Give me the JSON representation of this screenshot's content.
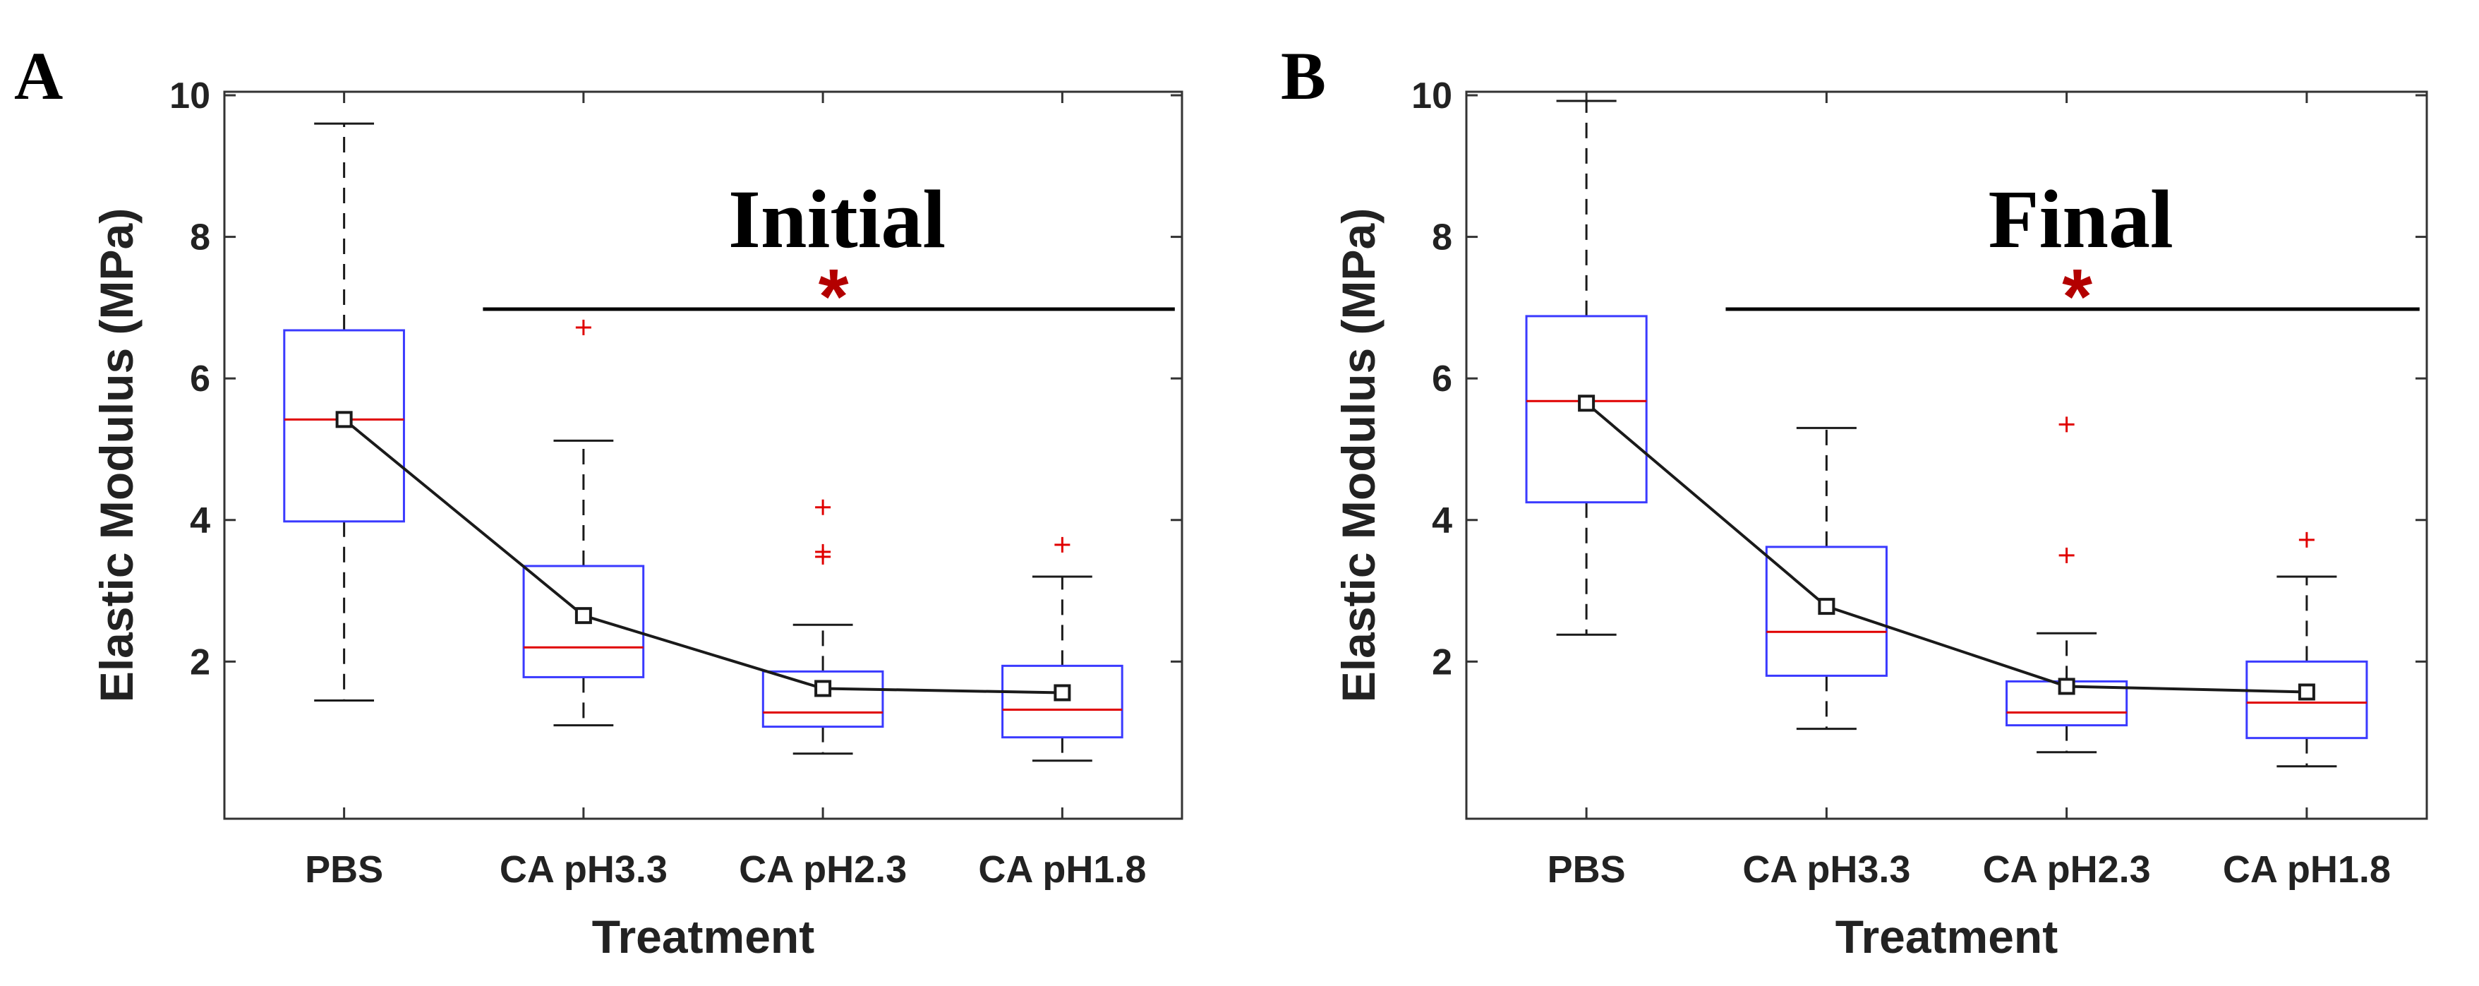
{
  "chart_data": [
    {
      "type": "box",
      "panel": "A",
      "title": "Initial",
      "xlabel": "Treatment",
      "ylabel": "Elastic Modulus (MPa)",
      "ylim": [
        0,
        10
      ],
      "yticks": [
        "2",
        "4",
        "6",
        "8",
        "10"
      ],
      "categories": [
        "PBS",
        "CA pH3.3",
        "CA pH2.3",
        "CA pH1.8"
      ],
      "significance_marker": "*",
      "significance_span": [
        "CA pH3.3",
        "CA pH1.8"
      ],
      "boxes": [
        {
          "whisker_low": 1.45,
          "q1": 3.98,
          "median": 5.42,
          "q3": 6.68,
          "whisker_high": 9.6,
          "outliers": []
        },
        {
          "whisker_low": 1.1,
          "q1": 1.78,
          "median": 2.2,
          "q3": 3.35,
          "whisker_high": 5.12,
          "outliers": [
            6.72
          ]
        },
        {
          "whisker_low": 0.7,
          "q1": 1.08,
          "median": 1.28,
          "q3": 1.86,
          "whisker_high": 2.52,
          "outliers": [
            3.48,
            3.55,
            4.18
          ]
        },
        {
          "whisker_low": 0.6,
          "q1": 0.93,
          "median": 1.32,
          "q3": 1.94,
          "whisker_high": 3.2,
          "outliers": [
            3.65
          ]
        }
      ],
      "means": [
        5.42,
        2.65,
        1.62,
        1.56
      ]
    },
    {
      "type": "box",
      "panel": "B",
      "title": "Final",
      "xlabel": "Treatment",
      "ylabel": "Elastic Modulus (MPa)",
      "ylim": [
        0,
        10
      ],
      "yticks": [
        "2",
        "4",
        "6",
        "8",
        "10"
      ],
      "categories": [
        "PBS",
        "CA pH3.3",
        "CA pH2.3",
        "CA pH1.8"
      ],
      "significance_marker": "*",
      "significance_span": [
        "CA pH3.3",
        "CA pH1.8"
      ],
      "boxes": [
        {
          "whisker_low": 2.38,
          "q1": 4.25,
          "median": 5.68,
          "q3": 6.88,
          "whisker_high": 9.92,
          "outliers": []
        },
        {
          "whisker_low": 1.05,
          "q1": 1.8,
          "median": 2.42,
          "q3": 3.62,
          "whisker_high": 5.3,
          "outliers": []
        },
        {
          "whisker_low": 0.72,
          "q1": 1.1,
          "median": 1.28,
          "q3": 1.72,
          "whisker_high": 2.4,
          "outliers": [
            3.5,
            5.35
          ]
        },
        {
          "whisker_low": 0.52,
          "q1": 0.92,
          "median": 1.42,
          "q3": 2.0,
          "whisker_high": 3.2,
          "outliers": [
            3.72
          ]
        }
      ],
      "means": [
        5.65,
        2.78,
        1.65,
        1.57
      ]
    }
  ]
}
